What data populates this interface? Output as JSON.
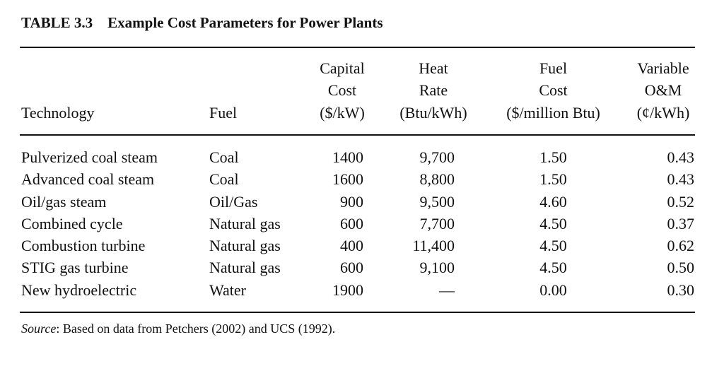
{
  "table": {
    "label": "TABLE 3.3",
    "title": "Example Cost Parameters for Power Plants",
    "headers": [
      [
        "",
        "",
        "Technology"
      ],
      [
        "",
        "",
        "Fuel"
      ],
      [
        "Capital",
        "Cost",
        "($/kW)"
      ],
      [
        "Heat",
        "Rate",
        "(Btu/kWh)"
      ],
      [
        "Fuel",
        "Cost",
        "($/million Btu)"
      ],
      [
        "Variable",
        "O&M",
        "(¢/kWh)"
      ]
    ],
    "rows": [
      [
        "Pulverized coal steam",
        "Coal",
        "1400",
        "9,700",
        "1.50",
        "0.43"
      ],
      [
        "Advanced coal steam",
        "Coal",
        "1600",
        "8,800",
        "1.50",
        "0.43"
      ],
      [
        "Oil/gas steam",
        "Oil/Gas",
        "900",
        "9,500",
        "4.60",
        "0.52"
      ],
      [
        "Combined cycle",
        "Natural gas",
        "600",
        "7,700",
        "4.50",
        "0.37"
      ],
      [
        "Combustion turbine",
        "Natural gas",
        "400",
        "11,400",
        "4.50",
        "0.62"
      ],
      [
        "STIG gas turbine",
        "Natural gas",
        "600",
        "9,100",
        "4.50",
        "0.50"
      ],
      [
        "New hydroelectric",
        "Water",
        "1900",
        "—",
        "0.00",
        "0.30"
      ]
    ],
    "source_label": "Source",
    "source_text": ": Based on data from Petchers (2002) and UCS (1992)."
  }
}
